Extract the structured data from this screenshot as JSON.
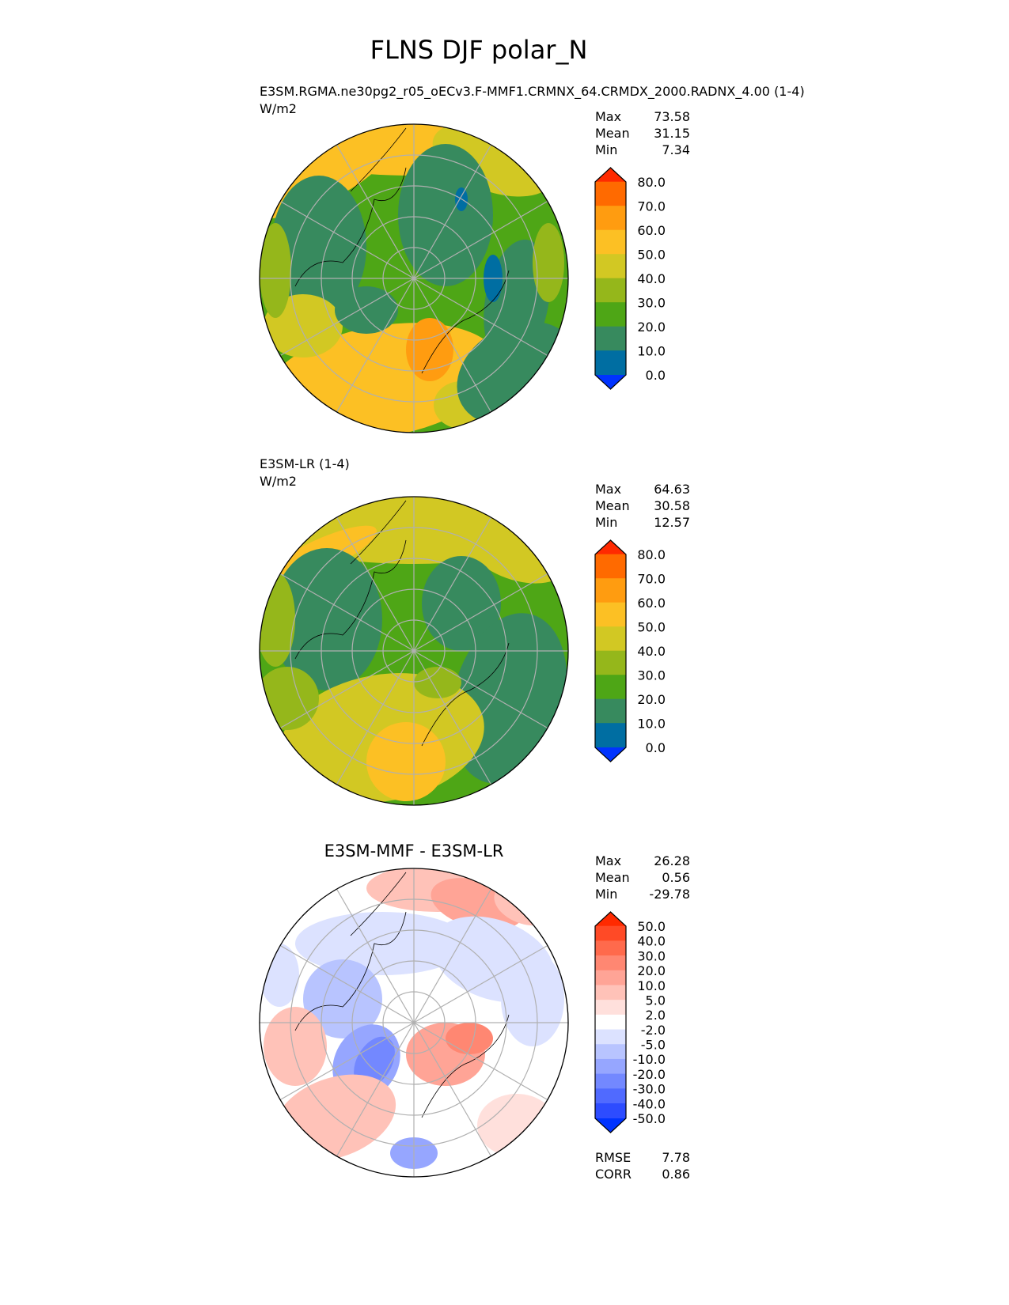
{
  "figure_title": "FLNS DJF polar_N",
  "panels": [
    {
      "name": "test",
      "subtitle": "E3SM.RGMA.ne30pg2_r05_oECv3.F-MMF1.CRMNX_64.CRMDX_2000.RADNX_4.00 (1-4)",
      "units": "W/m2",
      "stats": {
        "max_label": "Max",
        "max": "73.58",
        "mean_label": "Mean",
        "mean": "31.15",
        "min_label": "Min",
        "min": "7.34"
      }
    },
    {
      "name": "reference",
      "subtitle": "E3SM-LR (1-4)",
      "units": "W/m2",
      "stats": {
        "max_label": "Max",
        "max": "64.63",
        "mean_label": "Mean",
        "mean": "30.58",
        "min_label": "Min",
        "min": "12.57"
      }
    },
    {
      "name": "difference",
      "title": "E3SM-MMF - E3SM-LR",
      "stats": {
        "max_label": "Max",
        "max": "26.28",
        "mean_label": "Mean",
        "mean": "0.56",
        "min_label": "Min",
        "min": "-29.78"
      },
      "rmse_label": "RMSE",
      "rmse": "7.78",
      "corr_label": "CORR",
      "corr": "0.86"
    }
  ],
  "colorbar_main": {
    "ticks": [
      "80.0",
      "70.0",
      "60.0",
      "50.0",
      "40.0",
      "30.0",
      "20.0",
      "10.0",
      "0.0"
    ],
    "colors": [
      "#ff2a00",
      "#ff6a00",
      "#ff9c10",
      "#fcc024",
      "#d2c823",
      "#95b71b",
      "#4ea616",
      "#378a5e",
      "#006ea2",
      "#0033ff"
    ]
  },
  "colorbar_diff": {
    "ticks": [
      "50.0",
      "40.0",
      "30.0",
      "20.0",
      "10.0",
      "5.0",
      "2.0",
      "-2.0",
      "-5.0",
      "-10.0",
      "-20.0",
      "-30.0",
      "-40.0",
      "-50.0"
    ],
    "colors": [
      "#ff2a00",
      "#ff4a26",
      "#ff6a4c",
      "#ff8772",
      "#ffa496",
      "#ffc2b8",
      "#ffe0dc",
      "#ffffff",
      "#dce2ff",
      "#b8c4ff",
      "#96a6ff",
      "#7388ff",
      "#506aff",
      "#2d4cff",
      "#0033ff"
    ]
  }
}
